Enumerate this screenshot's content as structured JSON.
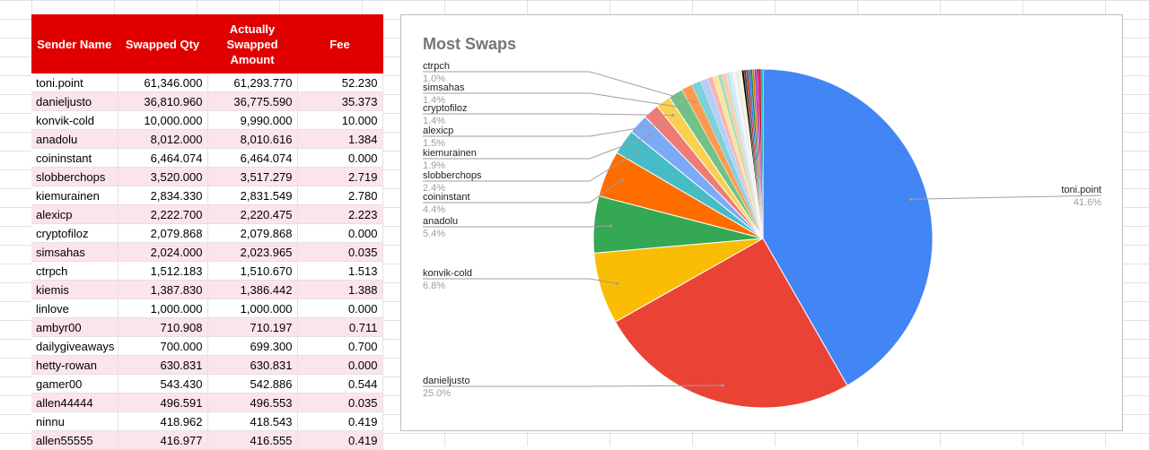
{
  "sheet": {
    "headers": [
      "Sender Name",
      "Swapped Qty",
      "Actually Swapped Amount",
      "Fee"
    ],
    "rows": [
      [
        "toni.point",
        "61,346.000",
        "61,293.770",
        "52.230"
      ],
      [
        "danieljusto",
        "36,810.960",
        "36,775.590",
        "35.373"
      ],
      [
        "konvik-cold",
        "10,000.000",
        "9,990.000",
        "10.000"
      ],
      [
        "anadolu",
        "8,012.000",
        "8,010.616",
        "1.384"
      ],
      [
        "coininstant",
        "6,464.074",
        "6,464.074",
        "0.000"
      ],
      [
        "slobberchops",
        "3,520.000",
        "3,517.279",
        "2.719"
      ],
      [
        "kiemurainen",
        "2,834.330",
        "2,831.549",
        "2.780"
      ],
      [
        "alexicp",
        "2,222.700",
        "2,220.475",
        "2.223"
      ],
      [
        "cryptofiloz",
        "2,079.868",
        "2,079.868",
        "0.000"
      ],
      [
        "simsahas",
        "2,024.000",
        "2,023.965",
        "0.035"
      ],
      [
        "ctrpch",
        "1,512.183",
        "1,510.670",
        "1.513"
      ],
      [
        "kiemis",
        "1,387.830",
        "1,386.442",
        "1.388"
      ],
      [
        "linlove",
        "1,000.000",
        "1,000.000",
        "0.000"
      ],
      [
        "ambyr00",
        "710.908",
        "710.197",
        "0.711"
      ],
      [
        "dailygiveaways",
        "700.000",
        "699.300",
        "0.700"
      ],
      [
        "hetty-rowan",
        "630.831",
        "630.831",
        "0.000"
      ],
      [
        "gamer00",
        "543.430",
        "542.886",
        "0.544"
      ],
      [
        "allen44444",
        "496.591",
        "496.553",
        "0.035"
      ],
      [
        "ninnu",
        "418.962",
        "418.543",
        "0.419"
      ],
      [
        "allen55555",
        "416.977",
        "416.555",
        "0.419"
      ]
    ]
  },
  "chart_data": {
    "type": "pie",
    "title": "Most Swaps",
    "slices": [
      {
        "label": "toni.point",
        "pct_label": "41.6%",
        "value": 41.6,
        "color": "#4285f4"
      },
      {
        "label": "danieljusto",
        "pct_label": "25.0%",
        "value": 25.0,
        "color": "#ea4335"
      },
      {
        "label": "konvik-cold",
        "pct_label": "6.8%",
        "value": 6.8,
        "color": "#fbbc04"
      },
      {
        "label": "anadolu",
        "pct_label": "5.4%",
        "value": 5.4,
        "color": "#34a853"
      },
      {
        "label": "coininstant",
        "pct_label": "4.4%",
        "value": 4.4,
        "color": "#ff6d01"
      },
      {
        "label": "slobberchops",
        "pct_label": "2.4%",
        "value": 2.4,
        "color": "#46bdc6"
      },
      {
        "label": "kiemurainen",
        "pct_label": "1.9%",
        "value": 1.9,
        "color": "#7baaf7"
      },
      {
        "label": "alexicp",
        "pct_label": "1.5%",
        "value": 1.5,
        "color": "#f07b72"
      },
      {
        "label": "cryptofiloz",
        "pct_label": "1.4%",
        "value": 1.4,
        "color": "#fcd04f"
      },
      {
        "label": "simsahas",
        "pct_label": "1.4%",
        "value": 1.4,
        "color": "#71c287"
      },
      {
        "label": "ctrpch",
        "pct_label": "1.0%",
        "value": 1.0,
        "color": "#ff994d"
      },
      {
        "label": "",
        "pct_label": "",
        "value": 0.9,
        "color": "#7ed1d7"
      },
      {
        "label": "",
        "pct_label": "",
        "value": 0.7,
        "color": "#b3cefb"
      },
      {
        "label": "",
        "pct_label": "",
        "value": 0.5,
        "color": "#f7b4ae"
      },
      {
        "label": "",
        "pct_label": "",
        "value": 0.5,
        "color": "#fde49b"
      },
      {
        "label": "",
        "pct_label": "",
        "value": 0.4,
        "color": "#aedcba"
      },
      {
        "label": "",
        "pct_label": "",
        "value": 0.4,
        "color": "#ffc9a3"
      },
      {
        "label": "",
        "pct_label": "",
        "value": 0.3,
        "color": "#b9e6e9"
      },
      {
        "label": "",
        "pct_label": "",
        "value": 0.3,
        "color": "#d9e6fd"
      },
      {
        "label": "",
        "pct_label": "",
        "value": 0.3,
        "color": "#f5f5f5"
      },
      {
        "label": "",
        "pct_label": "",
        "value": 0.3,
        "color": "#e8eaed"
      },
      {
        "label": "",
        "pct_label": "",
        "value": 0.3,
        "color": "#fdf3d0"
      },
      {
        "label": "",
        "pct_label": "",
        "value": 0.2,
        "color": "#000000"
      },
      {
        "label": "",
        "pct_label": "",
        "value": 0.2,
        "color": "#3c4043"
      },
      {
        "label": "",
        "pct_label": "",
        "value": 0.2,
        "color": "#c5221f"
      },
      {
        "label": "",
        "pct_label": "",
        "value": 0.2,
        "color": "#1a73e8"
      },
      {
        "label": "",
        "pct_label": "",
        "value": 0.2,
        "color": "#188038"
      },
      {
        "label": "",
        "pct_label": "",
        "value": 0.2,
        "color": "#e37400"
      },
      {
        "label": "",
        "pct_label": "",
        "value": 0.2,
        "color": "#9334e6"
      },
      {
        "label": "",
        "pct_label": "",
        "value": 0.2,
        "color": "#d01884"
      },
      {
        "label": "",
        "pct_label": "",
        "value": 0.2,
        "color": "#a50e0e"
      },
      {
        "label": "",
        "pct_label": "",
        "value": 0.2,
        "color": "#12b5cb"
      }
    ],
    "legend": "none"
  }
}
